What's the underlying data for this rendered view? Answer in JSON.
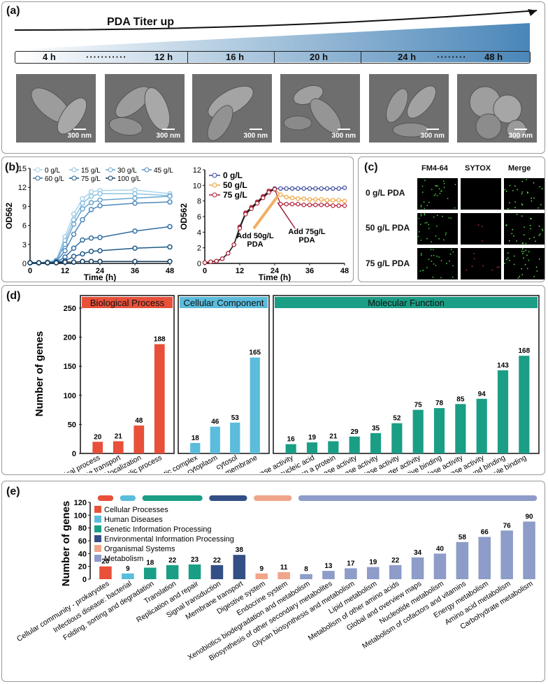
{
  "panel_a": {
    "label": "(a)",
    "title": "PDA Titer up",
    "times": [
      "4 h",
      "12 h",
      "16 h",
      "20 h",
      "24 h",
      "48 h"
    ],
    "scale_bar": "300 nm"
  },
  "panel_b": {
    "label": "(b)"
  },
  "panel_c": {
    "label": "(c)",
    "columns": [
      "FM4-64",
      "SYTOX",
      "Merge"
    ],
    "rows": [
      "0 g/L PDA",
      "50 g/L PDA",
      "75 g/L PDA"
    ]
  },
  "panel_d": {
    "label": "(d)"
  },
  "panel_e": {
    "label": "(e)"
  },
  "colors": {
    "c0": "#a9d3ea",
    "c15": "#8ec3e1",
    "c30": "#6aa6d0",
    "c45": "#4f88bd",
    "c60": "#2f6ea3",
    "c75": "#1e5b88",
    "c100": "#103a5e",
    "bio": "#e8503a",
    "cell": "#5bbcdc",
    "mol": "#1a9e85",
    "env": "#334f86",
    "org": "#f0a58a",
    "met": "#8d9cc8"
  },
  "chart_data": [
    {
      "type": "line",
      "id": "b1",
      "xlabel": "Time (h)",
      "ylabel": "OD562",
      "xlim": [
        0,
        48
      ],
      "ylim": [
        0,
        15
      ],
      "xticks": [
        0,
        12,
        24,
        36,
        48
      ],
      "yticks": [
        0,
        3,
        6,
        9,
        12,
        15
      ],
      "x": [
        0,
        3,
        6,
        9,
        12,
        15,
        18,
        21,
        24,
        36,
        48
      ],
      "series": [
        {
          "name": "0 g/L",
          "values": [
            0.1,
            0.1,
            0.2,
            0.5,
            4.2,
            7.8,
            10.2,
            11.3,
            11.5,
            11.6,
            11.0
          ]
        },
        {
          "name": "15 g/L",
          "values": [
            0.1,
            0.1,
            0.2,
            0.5,
            3.6,
            6.9,
            9.5,
            10.6,
            11.0,
            11.0,
            10.7
          ]
        },
        {
          "name": "30 g/L",
          "values": [
            0.1,
            0.1,
            0.2,
            0.4,
            3.0,
            6.2,
            8.6,
            9.6,
            10.0,
            10.3,
            10.6
          ]
        },
        {
          "name": "45 g/L",
          "values": [
            0.1,
            0.1,
            0.1,
            0.3,
            2.0,
            4.6,
            6.9,
            8.5,
            9.1,
            9.5,
            9.7
          ]
        },
        {
          "name": "60 g/L",
          "values": [
            0.1,
            0.1,
            0.1,
            0.2,
            1.0,
            2.4,
            3.7,
            4.0,
            4.1,
            5.1,
            5.8
          ]
        },
        {
          "name": "75 g/L",
          "values": [
            0.1,
            0.1,
            0.1,
            0.2,
            0.4,
            1.1,
            1.5,
            1.9,
            2.0,
            2.4,
            2.6
          ]
        },
        {
          "name": "100 g/L",
          "values": [
            0.1,
            0.1,
            0.1,
            0.1,
            0.2,
            0.2,
            0.3,
            0.3,
            0.3,
            0.3,
            0.3
          ]
        }
      ]
    },
    {
      "type": "line",
      "id": "b2",
      "xlabel": "Time (h)",
      "ylabel": "OD562",
      "xlim": [
        0,
        48
      ],
      "ylim": [
        0,
        12
      ],
      "xticks": [
        0,
        12,
        24,
        36,
        48
      ],
      "yticks": [
        0,
        2,
        4,
        6,
        8,
        10,
        12
      ],
      "series": [
        {
          "name": "0 g/L",
          "x": [
            0,
            2,
            4,
            6,
            8,
            10,
            12,
            14,
            16,
            18,
            20,
            22,
            24,
            26,
            28,
            30,
            32,
            34,
            36,
            38,
            40,
            42,
            44,
            46,
            48
          ],
          "values": [
            0.1,
            0.2,
            0.3,
            0.6,
            1.3,
            2.4,
            4.7,
            6.5,
            7.2,
            7.9,
            8.6,
            9.3,
            9.6,
            9.6,
            9.6,
            9.6,
            9.6,
            9.6,
            9.6,
            9.6,
            9.6,
            9.6,
            9.6,
            9.6,
            9.7
          ]
        },
        {
          "name": "50 g/L",
          "x": [
            0,
            2,
            4,
            6,
            8,
            10,
            12,
            14,
            16,
            18,
            20,
            22,
            24,
            26,
            28,
            30,
            32,
            34,
            36,
            38,
            40,
            42,
            44,
            46,
            48
          ],
          "values": [
            0.1,
            0.2,
            0.3,
            0.6,
            1.3,
            2.4,
            4.6,
            6.4,
            7.1,
            7.8,
            8.5,
            9.2,
            9.5,
            8.8,
            8.5,
            8.4,
            8.3,
            8.3,
            8.2,
            8.2,
            8.2,
            8.1,
            8.1,
            8.1,
            8.0
          ]
        },
        {
          "name": "75 g/L",
          "x": [
            0,
            2,
            4,
            6,
            8,
            10,
            12,
            14,
            16,
            18,
            20,
            22,
            24,
            26,
            28,
            30,
            32,
            34,
            36,
            38,
            40,
            42,
            44,
            46,
            48
          ],
          "values": [
            0.1,
            0.2,
            0.3,
            0.6,
            1.3,
            2.4,
            4.5,
            6.3,
            7.0,
            7.7,
            8.4,
            9.1,
            9.5,
            7.6,
            7.6,
            7.6,
            7.6,
            7.5,
            7.5,
            7.5,
            7.5,
            7.5,
            7.4,
            7.4,
            7.4
          ]
        }
      ],
      "annotations": [
        {
          "text": "Add 50g/L PDA"
        },
        {
          "text": "Add 75g/L PDA"
        }
      ]
    },
    {
      "type": "bar",
      "id": "d",
      "ylabel": "Number of genes",
      "ylim": [
        0,
        250
      ],
      "yticks": [
        0,
        50,
        100,
        150,
        200,
        250
      ],
      "groups": [
        {
          "name": "Biological Process",
          "categories": [
            "regulation of biological process",
            "transmembrane transport",
            "establishment of localization",
            "metabolic process"
          ],
          "values": [
            20,
            21,
            48,
            188
          ]
        },
        {
          "name": "Cellular Component",
          "categories": [
            "catalytic complex",
            "cytoplasm",
            "cytosol",
            "membrane"
          ],
          "values": [
            18,
            46,
            53,
            165
          ]
        },
        {
          "name": "Molecular Function",
          "categories": [
            "isomerase activity",
            "catalytic activity, acting on a nucleic acid",
            "catalytic activity, acting on a protein",
            "lyase activity",
            "ligase activity",
            "oxidoreductase activity",
            "transmembrane transporter activity",
            "carbohydrate derivative binding",
            "hydrolase activity",
            "transferase activity",
            "organic cyclic compound binding",
            "small molecule binding"
          ],
          "values": [
            16,
            19,
            21,
            29,
            35,
            52,
            75,
            78,
            85,
            94,
            143,
            168
          ]
        }
      ]
    },
    {
      "type": "bar",
      "id": "e",
      "ylabel": "Number of genes",
      "ylim": [
        0,
        120
      ],
      "yticks": [
        0,
        20,
        40,
        60,
        80,
        100,
        120
      ],
      "legend": [
        "Cellular Processes",
        "Human Diseases",
        "Genetic Information Processing",
        "Environmental Information Processing",
        "Organismal Systems",
        "Metabolism"
      ],
      "categories": [
        "Cellular community - prokaryotes",
        "Infectious disease: bacterial",
        "Folding, sorting and degradation",
        "Translation",
        "Replication and repair",
        "Signal transduction",
        "Membrane transport",
        "Digestive system",
        "Endocrine system",
        "Xenobiotics biodegradation and metabolism",
        "Biosynthesis of other secondary metabolites",
        "Glycan biosynthesis and metabolism",
        "Lipid metabolism",
        "Metabolism of other amino acids",
        "Global and overview maps",
        "Nucleotide metabolism",
        "Metabolism of cofactors and vitamins",
        "Energy metabolism",
        "Amino acid metabolism",
        "Carbohydrate metabolism"
      ],
      "values": [
        20,
        9,
        18,
        22,
        23,
        22,
        38,
        9,
        11,
        8,
        13,
        17,
        19,
        22,
        34,
        40,
        58,
        66,
        76,
        90
      ],
      "group_index": [
        0,
        1,
        2,
        2,
        2,
        3,
        3,
        4,
        4,
        5,
        5,
        5,
        5,
        5,
        5,
        5,
        5,
        5,
        5,
        5
      ]
    }
  ]
}
